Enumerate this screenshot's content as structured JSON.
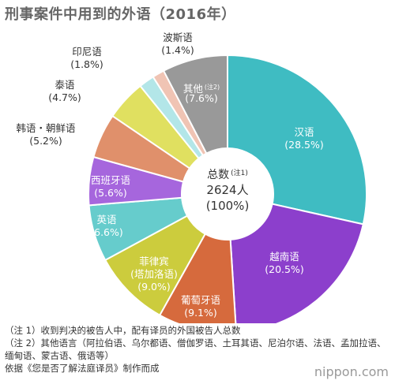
{
  "title": "刑事案件中用到的外语（2016年）",
  "chart_data": {
    "type": "pie",
    "slices": [
      {
        "name": "汉语",
        "label": "(28.5%)",
        "value": 28.5,
        "color": "#3fbcc2",
        "text_color": "#ffffff"
      },
      {
        "name": "越南语",
        "label": "(20.5%)",
        "value": 20.5,
        "color": "#8c3fcc",
        "text_color": "#ffffff"
      },
      {
        "name": "葡萄牙语",
        "label": "(9.1%)",
        "value": 9.1,
        "color": "#d66a3d",
        "text_color": "#ffffff"
      },
      {
        "name": "菲律宾",
        "name2": "(塔加洛语)",
        "label": "(9.0%)",
        "value": 9.0,
        "color": "#cccc3d",
        "text_color": "#ffffff"
      },
      {
        "name": "英语",
        "label": "(6.6%)",
        "value": 6.6,
        "color": "#66cccc",
        "text_color": "#ffffff"
      },
      {
        "name": "西班牙语",
        "label": "(5.6%)",
        "value": 5.6,
        "color": "#a666dd",
        "text_color": "#ffffff"
      },
      {
        "name": "韩语・朝鲜语",
        "label": "(5.2%)",
        "value": 5.2,
        "color": "#e0906b",
        "text_color": "#333333"
      },
      {
        "name": "泰语",
        "label": "(4.7%)",
        "value": 4.7,
        "color": "#e0e060",
        "text_color": "#333333"
      },
      {
        "name": "印尼语",
        "label": "(1.8%)",
        "value": 1.8,
        "color": "#b3e6e8",
        "text_color": "#333333"
      },
      {
        "name": "波斯语",
        "label": "(1.4%)",
        "value": 1.4,
        "color": "#f0c4b4",
        "text_color": "#333333"
      },
      {
        "name": "其他",
        "note": "(注2)",
        "label": "(7.6%)",
        "value": 7.6,
        "color": "#999999",
        "text_color": "#ffffff"
      }
    ],
    "center": {
      "line1": "总数",
      "note": "(注1)",
      "line2": "2624人",
      "line3": "(100%)"
    }
  },
  "notes": [
    "（注 1）收到判决的被告人中，配有译员的外国被告人总数",
    "（注 2）其他语言（阿拉伯语、乌尔都语、僧伽罗语、土耳其语、尼泊尔语、法语、孟加拉语、缅甸语、蒙古语、俄语等）",
    "依据《您是否了解法庭译员》制作而成"
  ],
  "brand": "nippon.com"
}
